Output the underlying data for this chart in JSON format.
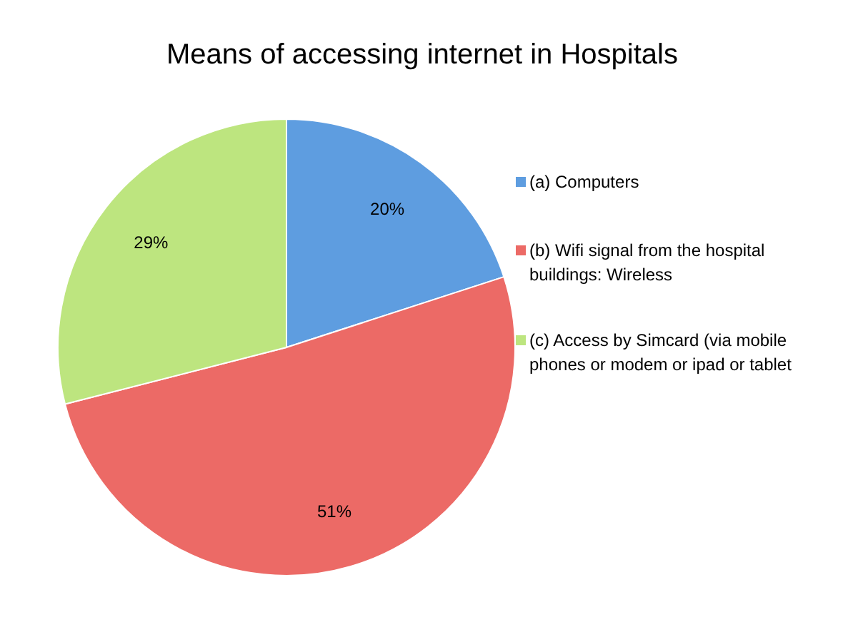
{
  "chart_data": {
    "type": "pie",
    "title": "Means of accessing internet in Hospitals",
    "categories": [
      "(a) Computers",
      "(b) Wifi signal from the hospital buildings: Wireless",
      "(c) Access by Simcard (via mobile phones or modem or ipad or tablet"
    ],
    "values": [
      20,
      51,
      29
    ],
    "colors": [
      "#5e9de0",
      "#ec6a66",
      "#bde57f"
    ],
    "value_labels": [
      "20%",
      "51%",
      "29%"
    ],
    "legend": "right"
  }
}
